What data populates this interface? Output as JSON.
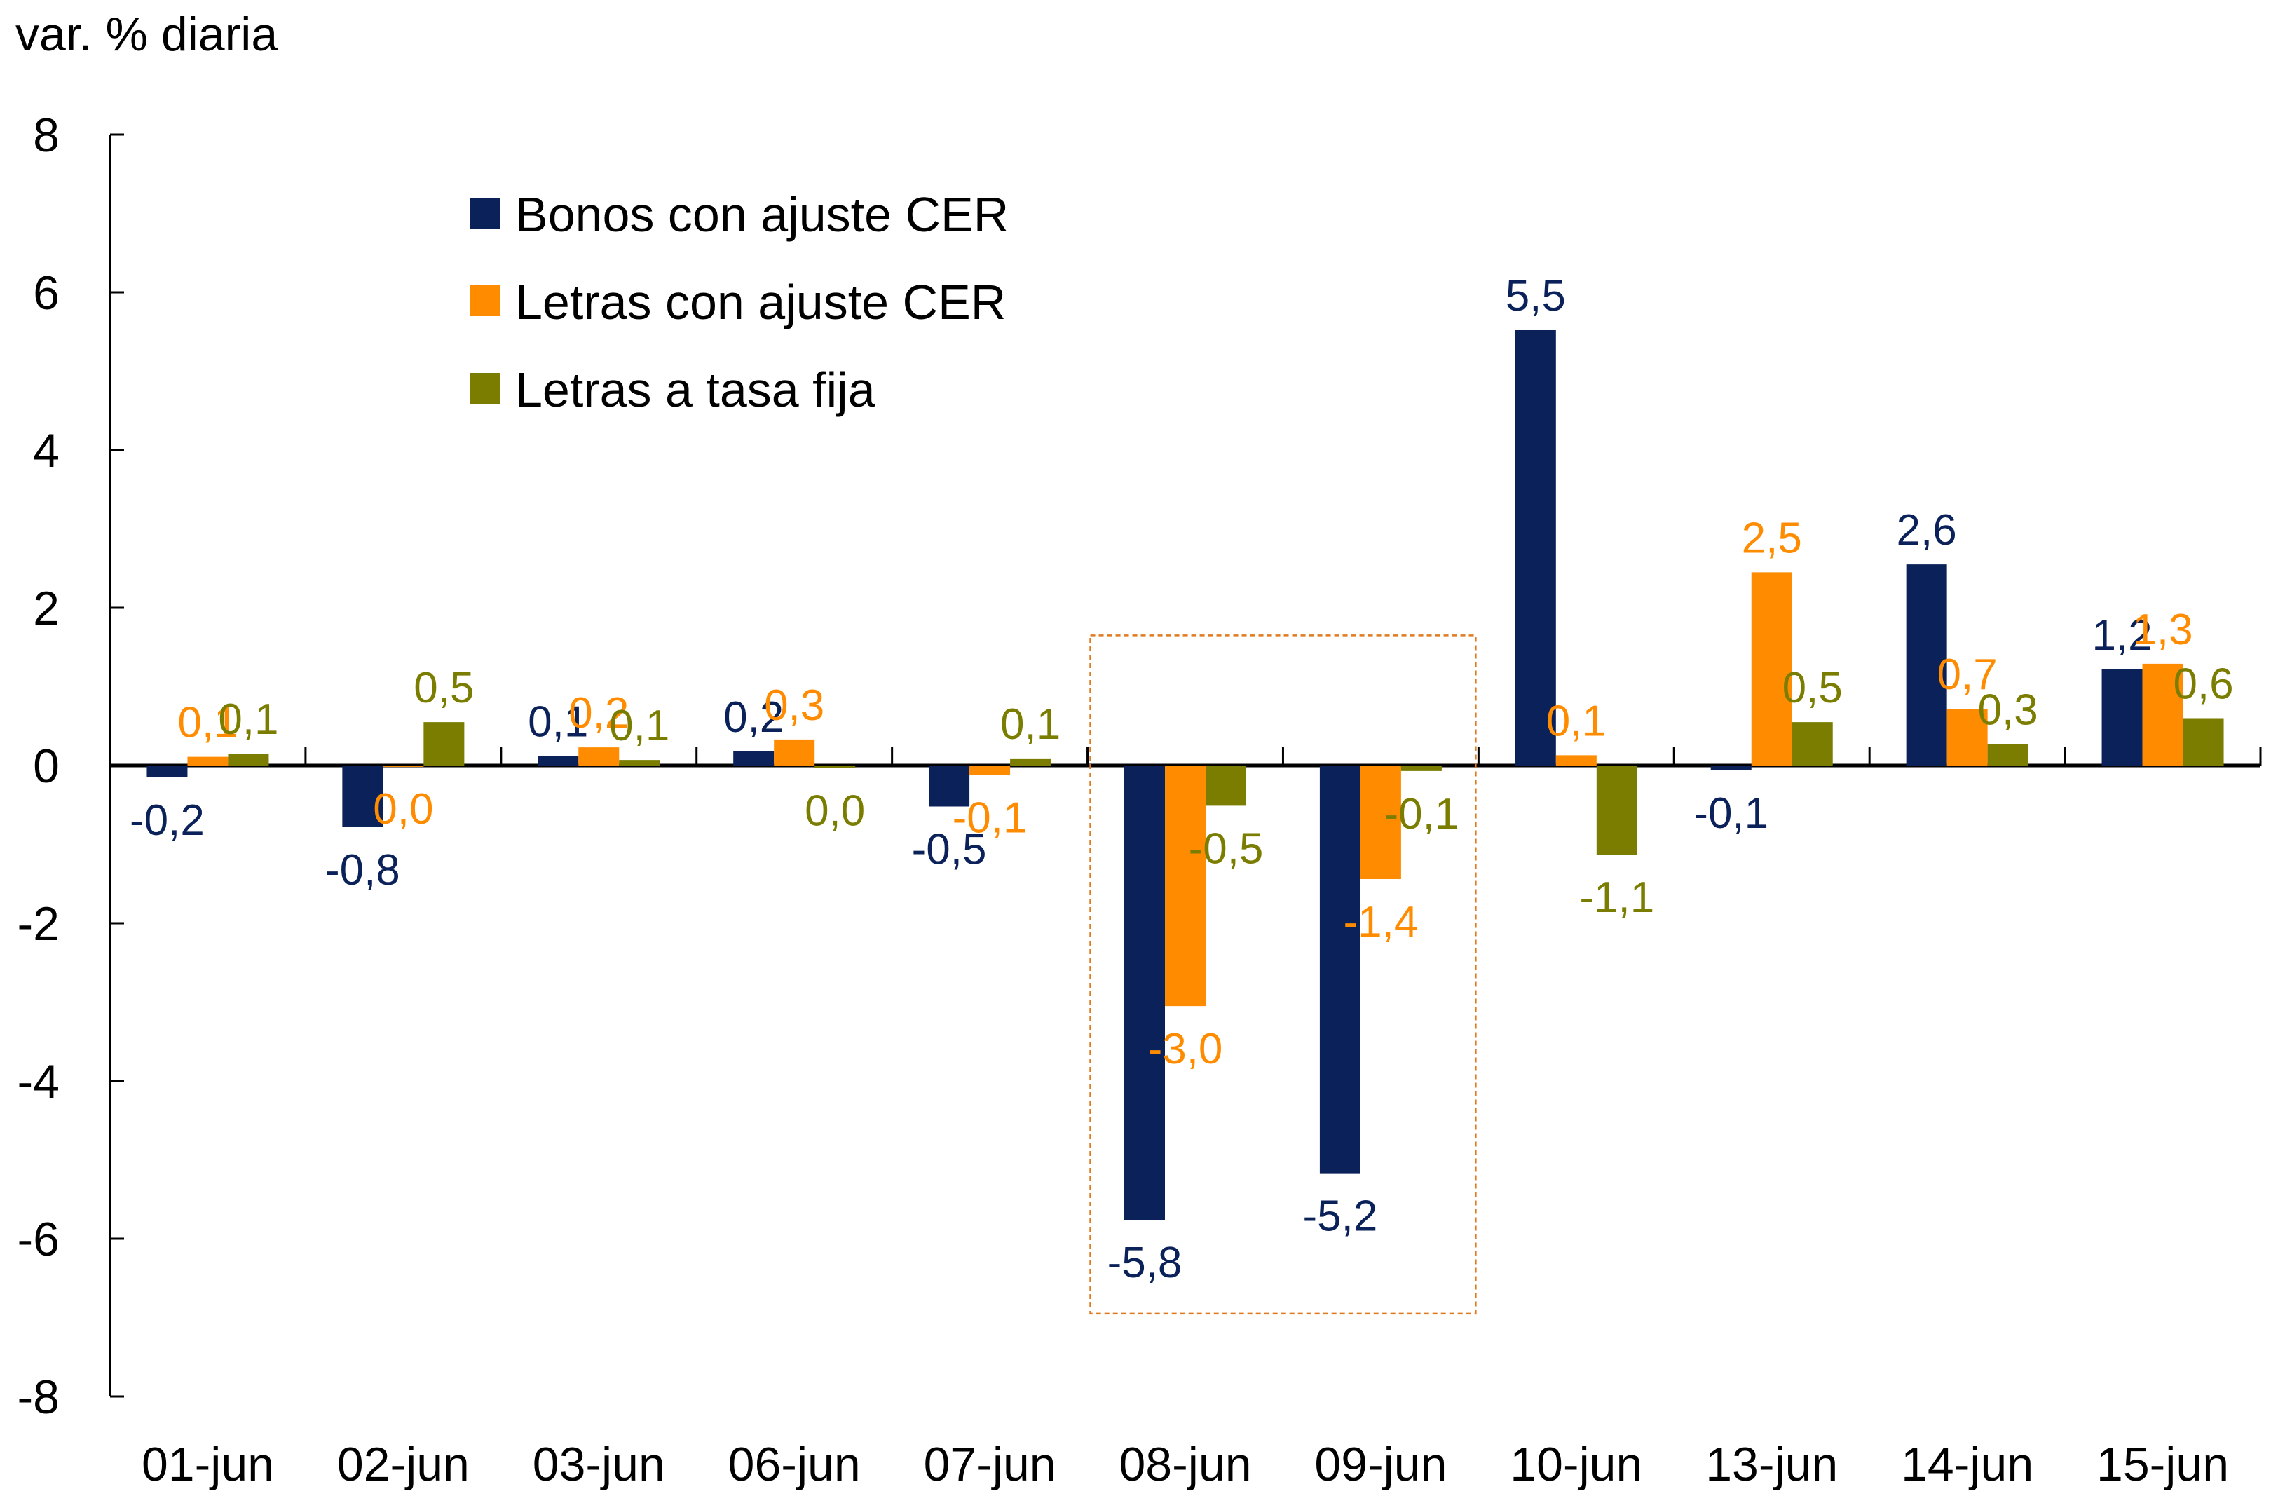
{
  "chart_data": {
    "type": "bar",
    "title": "",
    "ylabel": "var. % diaria",
    "xlabel": "",
    "ylim": [
      -8,
      8
    ],
    "yticks": [
      8,
      6,
      4,
      2,
      0,
      -2,
      -4,
      -6,
      -8
    ],
    "grid": false,
    "legend_position": "top-left",
    "categories": [
      "01-jun",
      "02-jun",
      "03-jun",
      "06-jun",
      "07-jun",
      "08-jun",
      "09-jun",
      "10-jun",
      "13-jun",
      "14-jun",
      "15-jun"
    ],
    "series": [
      {
        "name": "Bonos con ajuste CER",
        "color": "#0b2159",
        "values": [
          -0.15,
          -0.78,
          0.12,
          0.18,
          -0.52,
          -5.76,
          -5.17,
          5.52,
          -0.06,
          2.55,
          1.22
        ],
        "labels": [
          "-0,2",
          "-0,8",
          "0,1",
          "0,2",
          "-0,5",
          "-5,8",
          "-5,2",
          "5,5",
          "-0,1",
          "2,6",
          "1,2"
        ]
      },
      {
        "name": "Letras con ajuste CER",
        "color": "#ff8c00",
        "values": [
          0.11,
          -0.01,
          0.23,
          0.33,
          -0.12,
          -3.05,
          -1.44,
          0.13,
          2.45,
          0.72,
          1.29
        ],
        "labels": [
          "0,1",
          "0,0",
          "0,2",
          "0,3",
          "-0,1",
          "-3,0",
          "-1,4",
          "0,1",
          "2,5",
          "0,7",
          "1,3"
        ]
      },
      {
        "name": "Letras a tasa fija",
        "color": "#7a7d00",
        "values": [
          0.15,
          0.55,
          0.07,
          -0.03,
          0.09,
          -0.51,
          -0.07,
          -1.13,
          0.55,
          0.27,
          0.6
        ],
        "labels": [
          "0,1",
          "0,5",
          "0,1",
          "0,0",
          "0,1",
          "-0,5",
          "-0,1",
          "-1,1",
          "0,5",
          "0,3",
          "0,6"
        ]
      }
    ],
    "highlight": {
      "categories": [
        "08-jun",
        "09-jun"
      ],
      "style": "dashed-box",
      "color": "#e07a1f"
    }
  }
}
